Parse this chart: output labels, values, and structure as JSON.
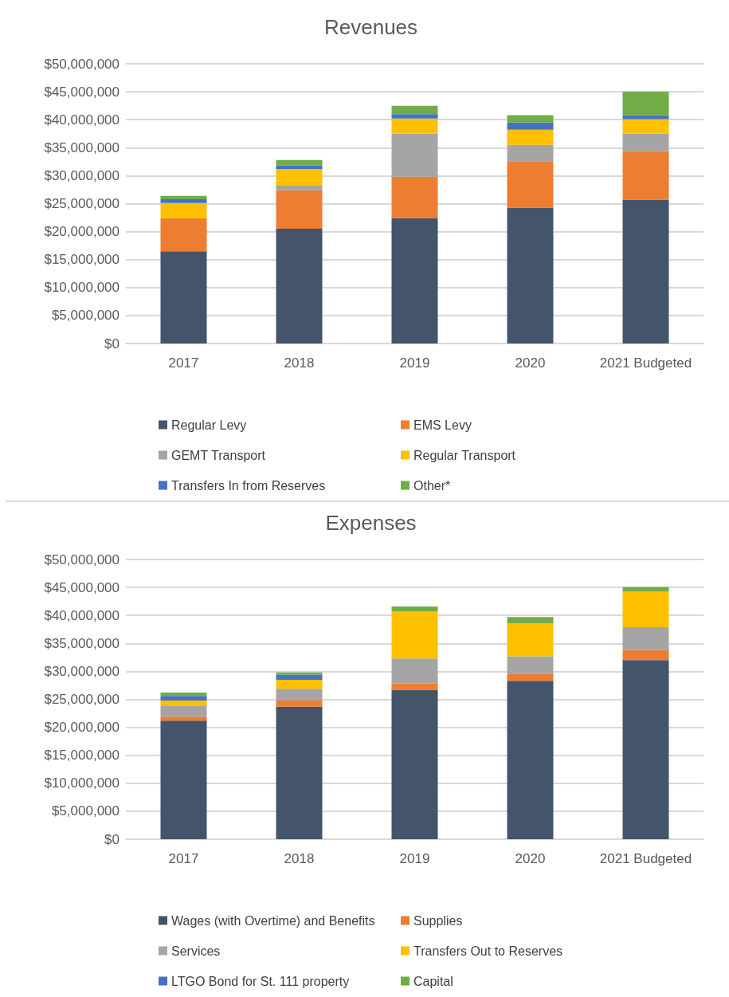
{
  "chart_data": [
    {
      "type": "bar",
      "title": "Revenues",
      "stacked": true,
      "categories": [
        "2017",
        "2018",
        "2019",
        "2020",
        "2021 Budgeted"
      ],
      "series": [
        {
          "name": "Regular Levy",
          "color": "#44546a",
          "values": [
            16500000,
            20500000,
            22400000,
            24300000,
            25700000
          ]
        },
        {
          "name": "EMS Levy",
          "color": "#ed7d31",
          "values": [
            5900000,
            6900000,
            7400000,
            8300000,
            8700000
          ]
        },
        {
          "name": "GEMT Transport",
          "color": "#a5a5a5",
          "values": [
            0,
            900000,
            7700000,
            2900000,
            3100000
          ]
        },
        {
          "name": "Regular Transport",
          "color": "#ffc000",
          "values": [
            2700000,
            2900000,
            2700000,
            2700000,
            2600000
          ]
        },
        {
          "name": "Transfers In from Reserves",
          "color": "#4472c4",
          "values": [
            700000,
            600000,
            800000,
            1300000,
            700000
          ]
        },
        {
          "name": "Other*",
          "color": "#70ad47",
          "values": [
            600000,
            1000000,
            1500000,
            1300000,
            4200000
          ]
        }
      ],
      "ylim": [
        0,
        50000000
      ],
      "yticks": [
        {
          "value": 0,
          "label": "$0"
        },
        {
          "value": 5000000,
          "label": "$5,000,000"
        },
        {
          "value": 10000000,
          "label": "$10,000,000"
        },
        {
          "value": 15000000,
          "label": "$15,000,000"
        },
        {
          "value": 20000000,
          "label": "$20,000,000"
        },
        {
          "value": 25000000,
          "label": "$25,000,000"
        },
        {
          "value": 30000000,
          "label": "$30,000,000"
        },
        {
          "value": 35000000,
          "label": "$35,000,000"
        },
        {
          "value": 40000000,
          "label": "$40,000,000"
        },
        {
          "value": 45000000,
          "label": "$45,000,000"
        },
        {
          "value": 50000000,
          "label": "$50,000,000"
        }
      ],
      "grid": "y",
      "legend": "bottom"
    },
    {
      "type": "bar",
      "title": "Expenses",
      "stacked": true,
      "categories": [
        "2017",
        "2018",
        "2019",
        "2020",
        "2021 Budgeted"
      ],
      "series": [
        {
          "name": "Wages (with Overtime) and Benefits",
          "color": "#44546a",
          "values": [
            21200000,
            23700000,
            26700000,
            28300000,
            32000000
          ]
        },
        {
          "name": "Supplies",
          "color": "#ed7d31",
          "values": [
            700000,
            1100000,
            1100000,
            1300000,
            1800000
          ]
        },
        {
          "name": "Services",
          "color": "#a5a5a5",
          "values": [
            2000000,
            2100000,
            4500000,
            3100000,
            4100000
          ]
        },
        {
          "name": "Transfers Out to Reserves",
          "color": "#ffc000",
          "values": [
            900000,
            1600000,
            8400000,
            5900000,
            6400000
          ]
        },
        {
          "name": "LTGO Bond for St. 111 property",
          "color": "#4472c4",
          "values": [
            800000,
            900000,
            0,
            0,
            0
          ]
        },
        {
          "name": "Capital",
          "color": "#70ad47",
          "values": [
            600000,
            400000,
            900000,
            1100000,
            800000
          ]
        }
      ],
      "ylim": [
        0,
        50000000
      ],
      "yticks": [
        {
          "value": 0,
          "label": "$0"
        },
        {
          "value": 5000000,
          "label": "$5,000,000"
        },
        {
          "value": 10000000,
          "label": "$10,000,000"
        },
        {
          "value": 15000000,
          "label": "$15,000,000"
        },
        {
          "value": 20000000,
          "label": "$20,000,000"
        },
        {
          "value": 25000000,
          "label": "$25,000,000"
        },
        {
          "value": 30000000,
          "label": "$30,000,000"
        },
        {
          "value": 35000000,
          "label": "$35,000,000"
        },
        {
          "value": 40000000,
          "label": "$40,000,000"
        },
        {
          "value": 45000000,
          "label": "$45,000,000"
        },
        {
          "value": 50000000,
          "label": "$50,000,000"
        }
      ],
      "grid": "y",
      "legend": "bottom"
    }
  ]
}
